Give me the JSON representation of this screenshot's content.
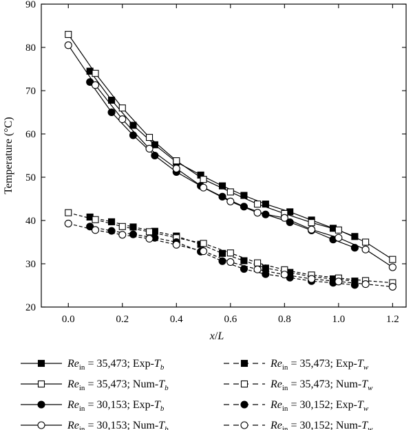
{
  "chart_data": {
    "type": "line",
    "title": "",
    "xlabel_main": "x",
    "xlabel_sep": "/",
    "xlabel_sub": "L",
    "ylabel": "Temperature (°C)",
    "xlim": [
      -0.1,
      1.25
    ],
    "ylim": [
      20,
      90
    ],
    "xticks": [
      0.0,
      0.2,
      0.4,
      0.6,
      0.8,
      1.0,
      1.2
    ],
    "xtick_labels": [
      "0.0",
      "0.2",
      "0.4",
      "0.6",
      "0.8",
      "1.0",
      "1.2"
    ],
    "yticks": [
      20,
      30,
      40,
      50,
      60,
      70,
      80,
      90
    ],
    "ytick_labels": [
      "20",
      "30",
      "40",
      "50",
      "60",
      "70",
      "80",
      "90"
    ],
    "grid": false,
    "legend_position": "bottom",
    "series": [
      {
        "key": "exp_tb_35473",
        "re": "Re",
        "re_sub": "in",
        "re_value": " = 35,473; ",
        "kind": "Exp-",
        "t": "T",
        "t_sub": "b",
        "marker": "square",
        "fill": "black",
        "line": "solid",
        "points": [
          [
            0.08,
            74.5
          ],
          [
            0.16,
            67.8
          ],
          [
            0.24,
            62.0
          ],
          [
            0.32,
            57.5
          ],
          [
            0.4,
            53.5
          ],
          [
            0.49,
            50.5
          ],
          [
            0.57,
            48.0
          ],
          [
            0.65,
            45.8
          ],
          [
            0.73,
            43.8
          ],
          [
            0.82,
            42.0
          ],
          [
            0.9,
            40.1
          ],
          [
            0.98,
            38.2
          ],
          [
            1.06,
            36.3
          ]
        ]
      },
      {
        "key": "num_tb_35473",
        "re": "Re",
        "re_sub": "in",
        "re_value": " = 35,473; ",
        "kind": "Num-",
        "t": "T",
        "t_sub": "b",
        "marker": "square",
        "fill": "white",
        "line": "solid",
        "points": [
          [
            0.0,
            83.0
          ],
          [
            0.1,
            74.0
          ],
          [
            0.2,
            66.0
          ],
          [
            0.3,
            59.2
          ],
          [
            0.4,
            53.8
          ],
          [
            0.5,
            49.5
          ],
          [
            0.6,
            46.6
          ],
          [
            0.7,
            43.8
          ],
          [
            0.8,
            41.6
          ],
          [
            0.9,
            39.5
          ],
          [
            1.0,
            37.8
          ],
          [
            1.1,
            35.0
          ],
          [
            1.2,
            31.0
          ]
        ]
      },
      {
        "key": "exp_tb_30153",
        "re": "Re",
        "re_sub": "in",
        "re_value": " = 30,153; ",
        "kind": "Exp-",
        "t": "T",
        "t_sub": "b",
        "marker": "circle",
        "fill": "black",
        "line": "solid",
        "points": [
          [
            0.08,
            72.0
          ],
          [
            0.16,
            65.0
          ],
          [
            0.24,
            59.7
          ],
          [
            0.32,
            55.0
          ],
          [
            0.4,
            51.2
          ],
          [
            0.49,
            48.0
          ],
          [
            0.57,
            45.5
          ],
          [
            0.65,
            43.2
          ],
          [
            0.73,
            41.4
          ],
          [
            0.82,
            39.6
          ],
          [
            0.9,
            37.7
          ],
          [
            0.98,
            35.6
          ],
          [
            1.06,
            33.7
          ]
        ]
      },
      {
        "key": "num_tb_30153",
        "re": "Re",
        "re_sub": "in",
        "re_value": " = 30,153; ",
        "kind": "Num-",
        "t": "T",
        "t_sub": "b",
        "marker": "circle",
        "fill": "white",
        "line": "solid",
        "points": [
          [
            0.0,
            80.5
          ],
          [
            0.1,
            71.3
          ],
          [
            0.2,
            63.4
          ],
          [
            0.3,
            56.6
          ],
          [
            0.4,
            52.0
          ],
          [
            0.5,
            47.6
          ],
          [
            0.6,
            44.4
          ],
          [
            0.7,
            41.8
          ],
          [
            0.8,
            40.6
          ],
          [
            0.9,
            37.9
          ],
          [
            1.0,
            36.0
          ],
          [
            1.1,
            33.3
          ],
          [
            1.2,
            29.2
          ]
        ]
      },
      {
        "key": "exp_tw_35473",
        "re": "Re",
        "re_sub": "in",
        "re_value": " = 35,473; ",
        "kind": "Exp-",
        "t": "T",
        "t_sub": "w",
        "marker": "square",
        "fill": "black",
        "line": "dashed",
        "points": [
          [
            0.08,
            40.8
          ],
          [
            0.16,
            39.7
          ],
          [
            0.24,
            38.5
          ],
          [
            0.32,
            37.5
          ],
          [
            0.4,
            36.4
          ],
          [
            0.49,
            34.5
          ],
          [
            0.57,
            32.4
          ],
          [
            0.65,
            30.7
          ],
          [
            0.73,
            29.0
          ],
          [
            0.82,
            28.0
          ],
          [
            0.9,
            27.0
          ],
          [
            0.98,
            26.5
          ],
          [
            1.06,
            26.0
          ]
        ]
      },
      {
        "key": "num_tw_35473",
        "re": "Re",
        "re_sub": "in",
        "re_value": " = 35,473; ",
        "kind": "Num-",
        "t": "T",
        "t_sub": "w",
        "marker": "square",
        "fill": "white",
        "line": "dashed",
        "points": [
          [
            0.0,
            41.8
          ],
          [
            0.1,
            40.2
          ],
          [
            0.2,
            38.6
          ],
          [
            0.3,
            37.4
          ],
          [
            0.4,
            36.0
          ],
          [
            0.5,
            34.7
          ],
          [
            0.6,
            32.5
          ],
          [
            0.7,
            30.2
          ],
          [
            0.8,
            28.6
          ],
          [
            0.9,
            27.4
          ],
          [
            1.0,
            26.7
          ],
          [
            1.1,
            26.1
          ],
          [
            1.2,
            25.6
          ]
        ]
      },
      {
        "key": "exp_tw_30152",
        "re": "Re",
        "re_sub": "in",
        "re_value": " = 30,152; ",
        "kind": "Exp-",
        "t": "T",
        "t_sub": "w",
        "marker": "circle",
        "fill": "black",
        "line": "dashed",
        "points": [
          [
            0.08,
            38.6
          ],
          [
            0.16,
            37.6
          ],
          [
            0.24,
            36.8
          ],
          [
            0.32,
            36.0
          ],
          [
            0.4,
            35.0
          ],
          [
            0.49,
            32.8
          ],
          [
            0.57,
            30.6
          ],
          [
            0.65,
            28.8
          ],
          [
            0.73,
            27.6
          ],
          [
            0.82,
            26.8
          ],
          [
            0.9,
            26.0
          ],
          [
            0.98,
            25.6
          ],
          [
            1.06,
            25.1
          ]
        ]
      },
      {
        "key": "num_tw_30152",
        "re": "Re",
        "re_sub": "in",
        "re_value": " = 30,152; ",
        "kind": "Num-",
        "t": "T",
        "t_sub": "w",
        "marker": "circle",
        "fill": "white",
        "line": "dashed",
        "points": [
          [
            0.0,
            39.3
          ],
          [
            0.1,
            37.8
          ],
          [
            0.2,
            36.7
          ],
          [
            0.3,
            35.8
          ],
          [
            0.4,
            34.4
          ],
          [
            0.5,
            32.9
          ],
          [
            0.6,
            30.4
          ],
          [
            0.7,
            28.7
          ],
          [
            0.8,
            27.5
          ],
          [
            0.9,
            26.5
          ],
          [
            1.0,
            25.9
          ],
          [
            1.1,
            25.3
          ],
          [
            1.2,
            24.7
          ]
        ]
      }
    ]
  }
}
